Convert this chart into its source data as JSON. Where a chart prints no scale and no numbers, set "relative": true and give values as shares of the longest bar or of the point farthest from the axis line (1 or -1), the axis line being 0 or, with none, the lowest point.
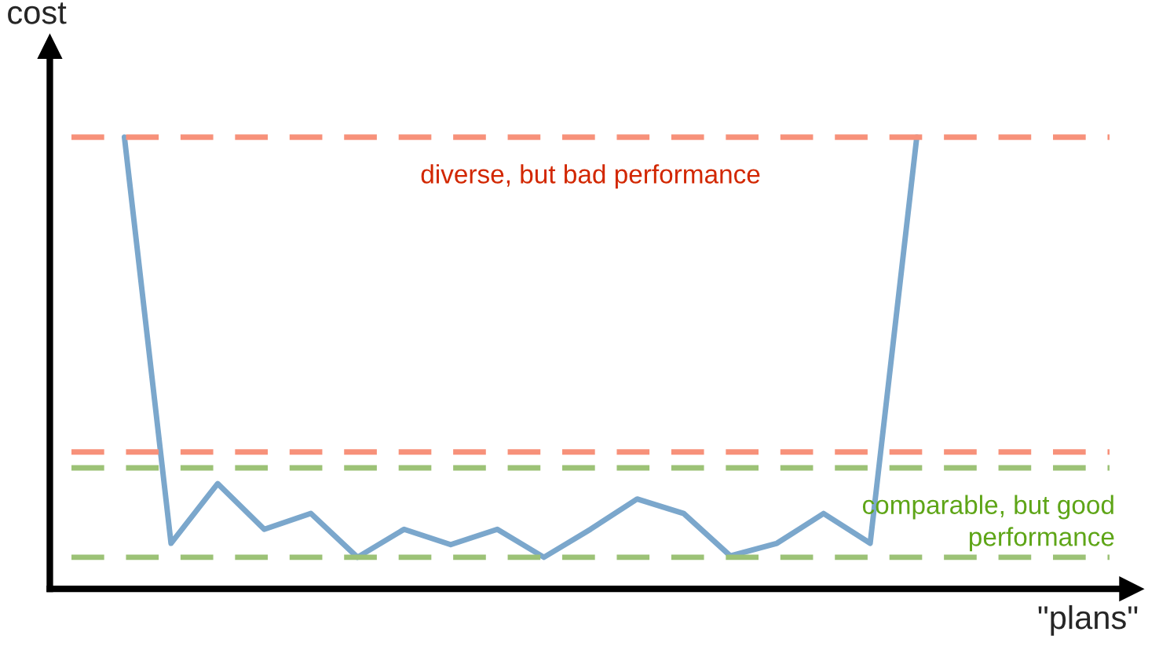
{
  "chart_data": {
    "type": "line",
    "relative": true,
    "xlabel": "\"plans\"",
    "ylabel": "cost",
    "categories": [
      null,
      null,
      null,
      null,
      null,
      null,
      null,
      null,
      null,
      null,
      null,
      null,
      null,
      null,
      null,
      null,
      null,
      null
    ],
    "series": [
      {
        "color": "#7ba7cc",
        "values": [
          1,
          0.101,
          0.233,
          0.132,
          0.167,
          0.07,
          0.132,
          0.098,
          0.132,
          0.07,
          0.132,
          0.199,
          0.167,
          0.073,
          0.101,
          0.167,
          0.101,
          1
        ]
      }
    ],
    "ref_lines": [
      {
        "axis": "y",
        "value": 1,
        "label": "diverse, but bad performance",
        "color": "#f7917a",
        "line_style": "dashed"
      },
      {
        "axis": "y",
        "value": 0.303,
        "label": null,
        "color": "#f7917a",
        "line_style": "dashed"
      },
      {
        "axis": "y",
        "value": 0.268,
        "label": "comparable, but good\nperformance",
        "color": "#9cc276",
        "line_style": "dashed"
      },
      {
        "axis": "y",
        "value": 0.07,
        "label": null,
        "color": "#9cc276",
        "line_style": "dashed"
      }
    ],
    "legend": false,
    "marker": "none",
    "line_style": "solid"
  }
}
